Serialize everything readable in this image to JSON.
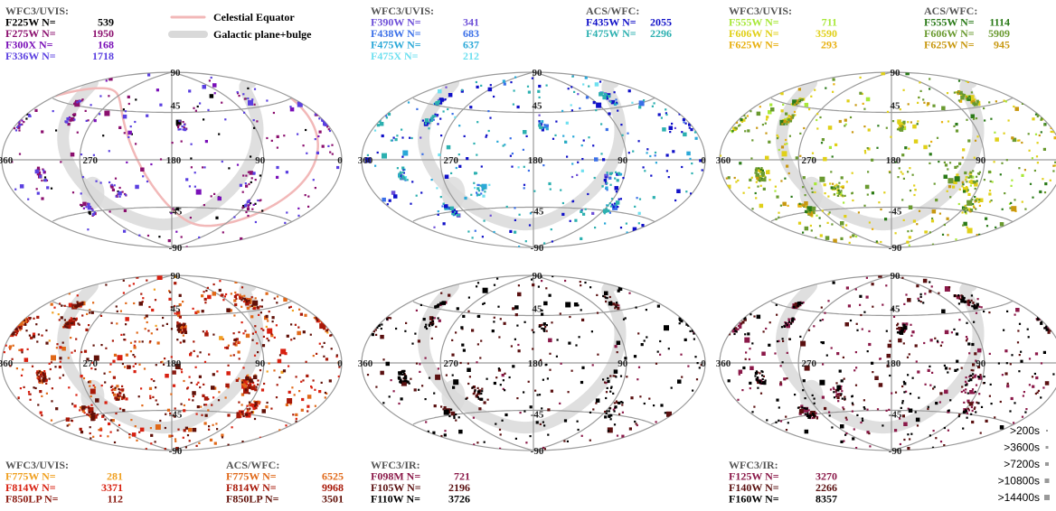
{
  "legend": {
    "equator_label": "Celestial Equator",
    "plane_label": "Galactic plane+bulge",
    "equator_color": "#f2b8b8",
    "plane_color": "#d9d9d9"
  },
  "exposure_legend": [
    ">200s",
    ">3600s",
    ">7200s",
    ">10800s",
    ">14400s"
  ],
  "chart_data": [
    {
      "type": "scatter",
      "projection": "aitoff",
      "panel": "top-left",
      "lon_ticks": [
        "360",
        "270",
        "180",
        "90",
        "0"
      ],
      "lat_ticks": [
        "90",
        "45",
        "-45",
        "-90"
      ],
      "show_equator": true,
      "groups": [
        {
          "instrument": "WFC3/UVIS:",
          "filters": [
            {
              "name": "F225W",
              "n_label": "N=",
              "n": 539,
              "color": "#000000"
            },
            {
              "name": "F275W",
              "n_label": "N=",
              "n": 1950,
              "color": "#8b0f6e"
            },
            {
              "name": "F300X",
              "n_label": "N=",
              "n": 168,
              "color": "#7a10b8"
            },
            {
              "name": "F336W",
              "n_label": "N=",
              "n": 1718,
              "color": "#5a3fe0"
            }
          ]
        }
      ]
    },
    {
      "type": "scatter",
      "projection": "aitoff",
      "panel": "top-middle",
      "lon_ticks": [
        "360",
        "270",
        "180",
        "90",
        "0"
      ],
      "lat_ticks": [
        "90",
        "45",
        "-45",
        "-90"
      ],
      "groups": [
        {
          "instrument": "WFC3/UVIS:",
          "filters": [
            {
              "name": "F390W",
              "n_label": "N=",
              "n": 341,
              "color": "#6d4fd8"
            },
            {
              "name": "F438W",
              "n_label": "N=",
              "n": 683,
              "color": "#3a6fe8"
            },
            {
              "name": "F475W",
              "n_label": "N=",
              "n": 637,
              "color": "#2aa8d8"
            },
            {
              "name": "F475X",
              "n_label": "N=",
              "n": 212,
              "color": "#6ee0f0"
            }
          ]
        },
        {
          "instrument": "ACS/WFC:",
          "filters": [
            {
              "name": "F435W",
              "n_label": "N=",
              "n": 2055,
              "color": "#1010c8"
            },
            {
              "name": "F475W",
              "n_label": "N=",
              "n": 2296,
              "color": "#2cb0b0"
            }
          ]
        }
      ]
    },
    {
      "type": "scatter",
      "projection": "aitoff",
      "panel": "top-right",
      "lon_ticks": [
        "360",
        "270",
        "180",
        "90",
        "0"
      ],
      "lat_ticks": [
        "90",
        "45",
        "-45",
        "-90"
      ],
      "groups": [
        {
          "instrument": "WFC3/UVIS:",
          "filters": [
            {
              "name": "F555W",
              "n_label": "N=",
              "n": 711,
              "color": "#a8e838"
            },
            {
              "name": "F606W",
              "n_label": "N=",
              "n": 3590,
              "color": "#e0d018"
            },
            {
              "name": "F625W",
              "n_label": "N=",
              "n": 293,
              "color": "#e8b010"
            }
          ]
        },
        {
          "instrument": "ACS/WFC:",
          "filters": [
            {
              "name": "F555W",
              "n_label": "N=",
              "n": 1114,
              "color": "#2a7a18"
            },
            {
              "name": "F606W",
              "n_label": "N=",
              "n": 5909,
              "color": "#6a9a30"
            },
            {
              "name": "F625W",
              "n_label": "N=",
              "n": 945,
              "color": "#c89810"
            }
          ]
        }
      ]
    },
    {
      "type": "scatter",
      "projection": "aitoff",
      "panel": "bottom-left",
      "lon_ticks": [
        "360",
        "270",
        "180",
        "90",
        "0"
      ],
      "lat_ticks": [
        "90",
        "45",
        "-45",
        "-90"
      ],
      "groups": [
        {
          "instrument": "WFC3/UVIS:",
          "filters": [
            {
              "name": "F775W",
              "n_label": "N=",
              "n": 281,
              "color": "#f0a020"
            },
            {
              "name": "F814W",
              "n_label": "N=",
              "n": 3371,
              "color": "#d82010"
            },
            {
              "name": "F850LP",
              "n_label": "N=",
              "n": 112,
              "color": "#8a1a10"
            }
          ]
        },
        {
          "instrument": "ACS/WFC:",
          "filters": [
            {
              "name": "F775W",
              "n_label": "N=",
              "n": 6525,
              "color": "#e06818"
            },
            {
              "name": "F814W",
              "n_label": "N=",
              "n": 9968,
              "color": "#a81808"
            },
            {
              "name": "F850LP",
              "n_label": "N=",
              "n": 3501,
              "color": "#601008"
            }
          ]
        }
      ]
    },
    {
      "type": "scatter",
      "projection": "aitoff",
      "panel": "bottom-middle",
      "lon_ticks": [
        "360",
        "270",
        "180",
        "90",
        "0"
      ],
      "lat_ticks": [
        "90",
        "45",
        "-45",
        "-90"
      ],
      "groups": [
        {
          "instrument": "WFC3/IR:",
          "filters": [
            {
              "name": "F098M",
              "n_label": "N=",
              "n": 721,
              "color": "#8a1848"
            },
            {
              "name": "F105W",
              "n_label": "N=",
              "n": 2196,
              "color": "#5a1010"
            },
            {
              "name": "F110W",
              "n_label": "N=",
              "n": 3726,
              "color": "#000000"
            }
          ]
        }
      ]
    },
    {
      "type": "scatter",
      "projection": "aitoff",
      "panel": "bottom-right",
      "lon_ticks": [
        "360",
        "270",
        "180",
        "90",
        "0"
      ],
      "lat_ticks": [
        "90",
        "45",
        "-45",
        "-90"
      ],
      "groups": [
        {
          "instrument": "WFC3/IR:",
          "filters": [
            {
              "name": "F125W",
              "n_label": "N=",
              "n": 3270,
              "color": "#8a1848"
            },
            {
              "name": "F140W",
              "n_label": "N=",
              "n": 2266,
              "color": "#5a1010"
            },
            {
              "name": "F160W",
              "n_label": "N=",
              "n": 8357,
              "color": "#000000"
            }
          ]
        }
      ]
    }
  ]
}
